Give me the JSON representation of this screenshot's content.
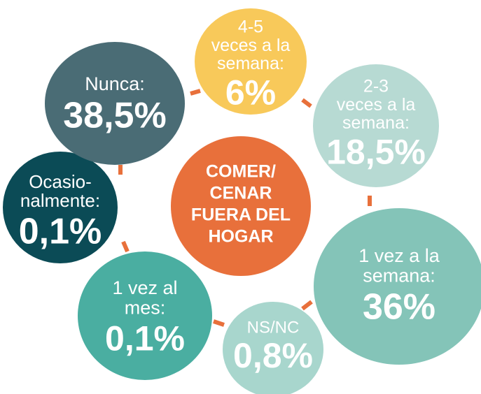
{
  "center": {
    "lines": [
      "COMER/",
      "CENAR",
      "FUERA DEL",
      "HOGAR"
    ]
  },
  "nodes": [
    {
      "lines": [
        "4-5",
        "veces a la",
        "semana:"
      ],
      "value": "6%"
    },
    {
      "lines": [
        "2-3",
        "veces a la",
        "semana:"
      ],
      "value": "18,5%"
    },
    {
      "lines": [
        "1 vez a la",
        "semana:"
      ],
      "value": "36%"
    },
    {
      "lines": [
        "NS/NC"
      ],
      "value": "0,8%"
    },
    {
      "lines": [
        "1 vez al",
        "mes:"
      ],
      "value": "0,1%"
    },
    {
      "lines": [
        "Ocasio-",
        "nalmente:"
      ],
      "value": "0,1%"
    },
    {
      "lines": [
        "Nunca:"
      ],
      "value": "38,5%"
    }
  ]
}
